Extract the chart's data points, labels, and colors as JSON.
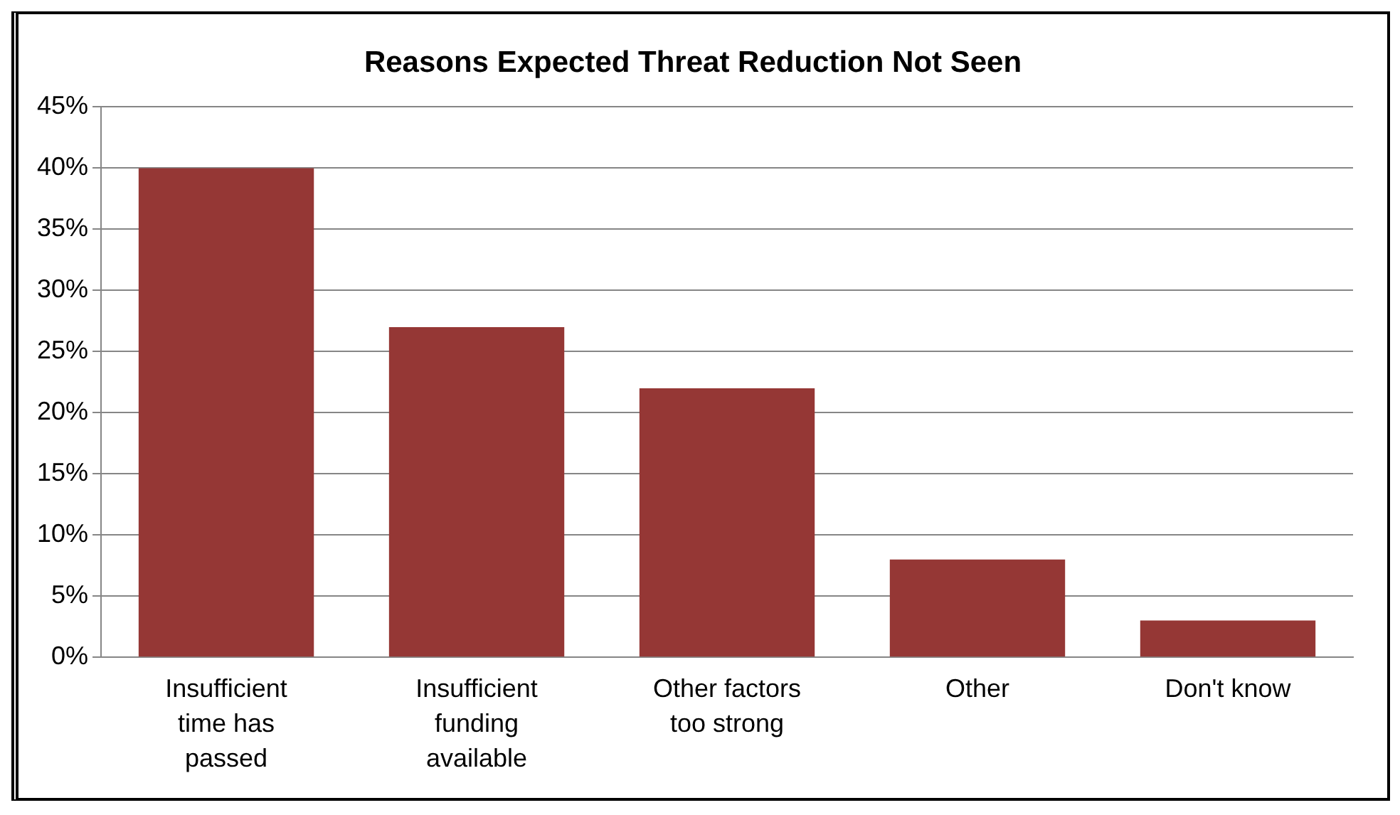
{
  "chart_data": {
    "type": "bar",
    "title": "Reasons Expected Threat Reduction Not Seen",
    "categories": [
      "Insufficient time has passed",
      "Insufficient funding available",
      "Other factors too strong",
      "Other",
      "Don't know"
    ],
    "values": [
      40,
      27,
      22,
      8,
      3
    ],
    "color": "#953735",
    "ylim": [
      0,
      45
    ],
    "yticks": [
      {
        "value": 0,
        "label": "0%"
      },
      {
        "value": 5,
        "label": "5%"
      },
      {
        "value": 10,
        "label": "10%"
      },
      {
        "value": 15,
        "label": "15%"
      },
      {
        "value": 20,
        "label": "20%"
      },
      {
        "value": 25,
        "label": "25%"
      },
      {
        "value": 30,
        "label": "30%"
      },
      {
        "value": 35,
        "label": "35%"
      },
      {
        "value": 40,
        "label": "40%"
      },
      {
        "value": 45,
        "label": "45%"
      }
    ],
    "grid": "y",
    "legend": false
  }
}
